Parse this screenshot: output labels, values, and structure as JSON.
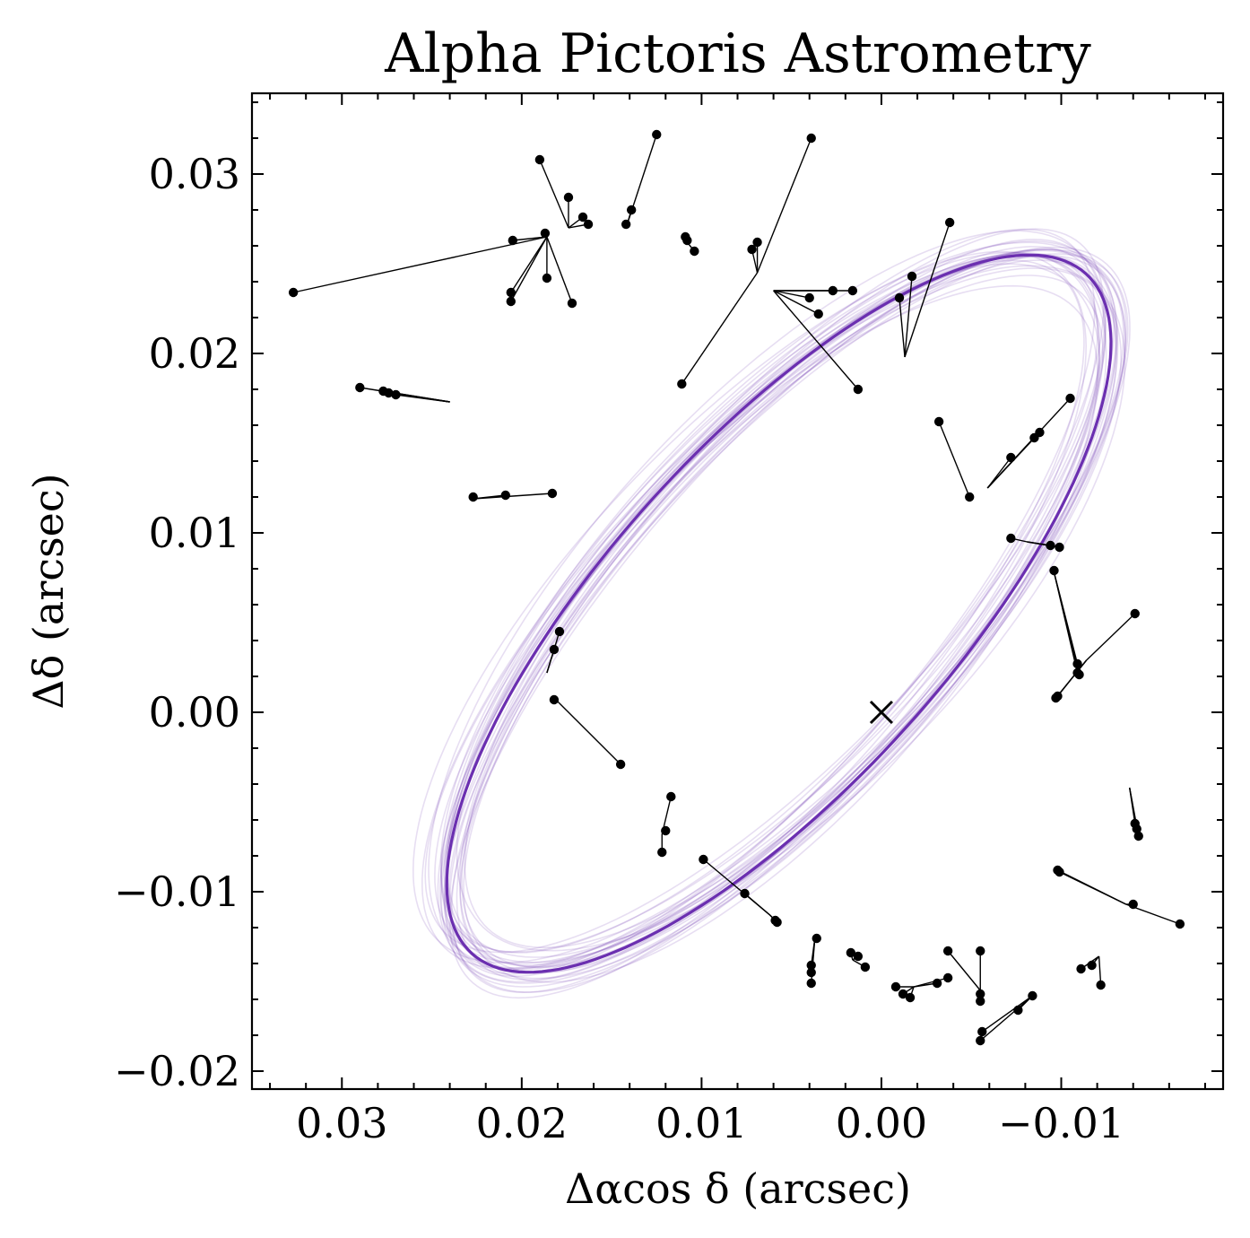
{
  "chart_data": {
    "type": "scatter",
    "title": "Alpha Pictoris Astrometry",
    "xlabel": "Δαcos δ (arcsec)",
    "ylabel": "Δδ (arcsec)",
    "xlim": [
      0.035,
      -0.019
    ],
    "ylim": [
      -0.021,
      0.0345
    ],
    "x_ticks": [
      0.03,
      0.02,
      0.01,
      0.0,
      -0.01
    ],
    "x_tick_labels": [
      "0.03",
      "0.02",
      "0.01",
      "0.00",
      "−0.01"
    ],
    "y_ticks": [
      0.03,
      0.02,
      0.01,
      0.0,
      -0.01,
      -0.02
    ],
    "y_tick_labels": [
      "0.03",
      "0.02",
      "0.01",
      "0.00",
      "−0.01",
      "−0.02"
    ],
    "star_position": [
      0.0,
      0.0
    ],
    "orbit": {
      "color": "#6b2fb0",
      "center": [
        0.0057,
        0.0055
      ],
      "semi_axes": [
        0.0095,
        0.0255
      ],
      "rotation_deg": 42,
      "samples": 30
    },
    "measurements": [
      {
        "model": [
          0.024,
          0.0173
        ],
        "points": [
          [
            0.029,
            0.0181
          ],
          [
            0.0277,
            0.0179
          ],
          [
            0.0274,
            0.0178
          ],
          [
            0.027,
            0.0177
          ]
        ]
      },
      {
        "model": [
          0.0186,
          0.0265
        ],
        "points": [
          [
            0.0327,
            0.0234
          ],
          [
            0.0205,
            0.0263
          ],
          [
            0.0206,
            0.0234
          ],
          [
            0.0206,
            0.0229
          ],
          [
            0.0187,
            0.0267
          ],
          [
            0.0186,
            0.0242
          ],
          [
            0.0172,
            0.0228
          ]
        ]
      },
      {
        "model": [
          0.0174,
          0.027
        ],
        "points": [
          [
            0.019,
            0.0308
          ],
          [
            0.0174,
            0.0287
          ],
          [
            0.0166,
            0.0276
          ],
          [
            0.0163,
            0.0272
          ]
        ]
      },
      {
        "model": [
          0.0142,
          0.027
        ],
        "points": [
          [
            0.0125,
            0.0322
          ],
          [
            0.0139,
            0.028
          ],
          [
            0.0142,
            0.0272
          ]
        ]
      },
      {
        "model": [
          0.0108,
          0.0262
        ],
        "points": [
          [
            0.0109,
            0.0265
          ],
          [
            0.0108,
            0.0263
          ],
          [
            0.0104,
            0.0257
          ]
        ]
      },
      {
        "model": [
          0.0069,
          0.0245
        ],
        "points": [
          [
            0.0039,
            0.032
          ],
          [
            0.0072,
            0.0258
          ],
          [
            0.0069,
            0.0262
          ],
          [
            0.0111,
            0.0183
          ]
        ]
      },
      {
        "model": [
          0.006,
          0.0235
        ],
        "points": [
          [
            0.0016,
            0.0235
          ],
          [
            0.0027,
            0.0235
          ],
          [
            0.004,
            0.0231
          ],
          [
            0.0035,
            0.0222
          ],
          [
            0.0013,
            0.018
          ]
        ]
      },
      {
        "model": [
          -0.0013,
          0.0198
        ],
        "points": [
          [
            -0.0038,
            0.0273
          ],
          [
            -0.0017,
            0.0243
          ],
          [
            -0.001,
            0.0231
          ]
        ]
      },
      {
        "model": [
          -0.0032,
          0.0162
        ],
        "points": [
          [
            -0.0032,
            0.0162
          ],
          [
            -0.0049,
            0.012
          ]
        ]
      },
      {
        "model": [
          -0.0059,
          0.0125
        ],
        "points": [
          [
            -0.0105,
            0.0175
          ],
          [
            -0.0088,
            0.0156
          ],
          [
            -0.0085,
            0.0153
          ],
          [
            -0.0072,
            0.0142
          ]
        ]
      },
      {
        "model": [
          -0.0081,
          0.0095
        ],
        "points": [
          [
            -0.0072,
            0.0097
          ],
          [
            -0.0094,
            0.0093
          ],
          [
            -0.0099,
            0.0092
          ]
        ]
      },
      {
        "model": [
          -0.0096,
          0.0078
        ],
        "points": [
          [
            -0.0096,
            0.0079
          ],
          [
            -0.0109,
            0.0027
          ],
          [
            -0.0109,
            0.0022
          ],
          [
            -0.011,
            0.0021
          ]
        ]
      },
      {
        "model": [
          -0.0114,
          0.0029
        ],
        "points": [
          [
            -0.0141,
            0.0055
          ],
          [
            -0.0098,
            0.0009
          ],
          [
            -0.0097,
            0.0008
          ]
        ]
      },
      {
        "model": [
          -0.0138,
          -0.0042
        ],
        "points": [
          [
            -0.0141,
            -0.0062
          ],
          [
            -0.0142,
            -0.0065
          ],
          [
            -0.0143,
            -0.0069
          ]
        ]
      },
      {
        "model": [
          -0.0136,
          -0.0107
        ],
        "points": [
          [
            -0.0099,
            -0.0089
          ],
          [
            -0.0098,
            -0.0088
          ],
          [
            -0.014,
            -0.0107
          ],
          [
            -0.0166,
            -0.0118
          ]
        ]
      },
      {
        "model": [
          -0.0121,
          -0.0136
        ],
        "points": [
          [
            -0.0122,
            -0.0152
          ],
          [
            -0.0117,
            -0.0141
          ],
          [
            -0.0111,
            -0.0143
          ]
        ]
      },
      {
        "model": [
          -0.0084,
          -0.0158
        ],
        "points": [
          [
            -0.0084,
            -0.0158
          ],
          [
            -0.0076,
            -0.0166
          ],
          [
            -0.0056,
            -0.0178
          ],
          [
            -0.0055,
            -0.0183
          ]
        ]
      },
      {
        "model": [
          -0.0055,
          -0.0155
        ],
        "points": [
          [
            -0.0055,
            -0.0133
          ],
          [
            -0.0055,
            -0.0157
          ],
          [
            -0.0055,
            -0.0161
          ],
          [
            -0.0037,
            -0.0133
          ]
        ]
      },
      {
        "model": [
          -0.0018,
          -0.0153
        ],
        "points": [
          [
            -0.0037,
            -0.0148
          ],
          [
            -0.0031,
            -0.0151
          ],
          [
            -0.0016,
            -0.0159
          ],
          [
            -0.0012,
            -0.0157
          ],
          [
            -0.0008,
            -0.0153
          ]
        ]
      },
      {
        "model": [
          0.0016,
          -0.0138
        ],
        "points": [
          [
            0.0017,
            -0.0134
          ],
          [
            0.0013,
            -0.0136
          ],
          [
            0.0009,
            -0.0142
          ]
        ]
      },
      {
        "model": [
          0.0037,
          -0.0126
        ],
        "points": [
          [
            0.0036,
            -0.0126
          ],
          [
            0.0039,
            -0.0141
          ],
          [
            0.0039,
            -0.0145
          ],
          [
            0.0039,
            -0.0151
          ]
        ]
      },
      {
        "model": [
          0.0062,
          -0.0113
        ],
        "points": [
          [
            0.0058,
            -0.0117
          ],
          [
            0.0059,
            -0.0116
          ],
          [
            0.0076,
            -0.0101
          ],
          [
            0.0099,
            -0.0082
          ]
        ]
      },
      {
        "model": [
          0.0122,
          -0.0068
        ],
        "points": [
          [
            0.0117,
            -0.0047
          ],
          [
            0.012,
            -0.0066
          ],
          [
            0.0122,
            -0.0078
          ]
        ]
      },
      {
        "model": [
          0.0182,
          0.0008
        ],
        "points": [
          [
            0.0182,
            0.0007
          ],
          [
            0.0145,
            -0.0029
          ]
        ]
      },
      {
        "model": [
          0.0186,
          0.0022
        ],
        "points": [
          [
            0.0179,
            0.0045
          ],
          [
            0.0182,
            0.0035
          ]
        ]
      },
      {
        "model": [
          0.0227,
          0.0119
        ],
        "points": [
          [
            0.0227,
            0.012
          ],
          [
            0.0209,
            0.0121
          ],
          [
            0.0183,
            0.0122
          ]
        ]
      }
    ]
  }
}
